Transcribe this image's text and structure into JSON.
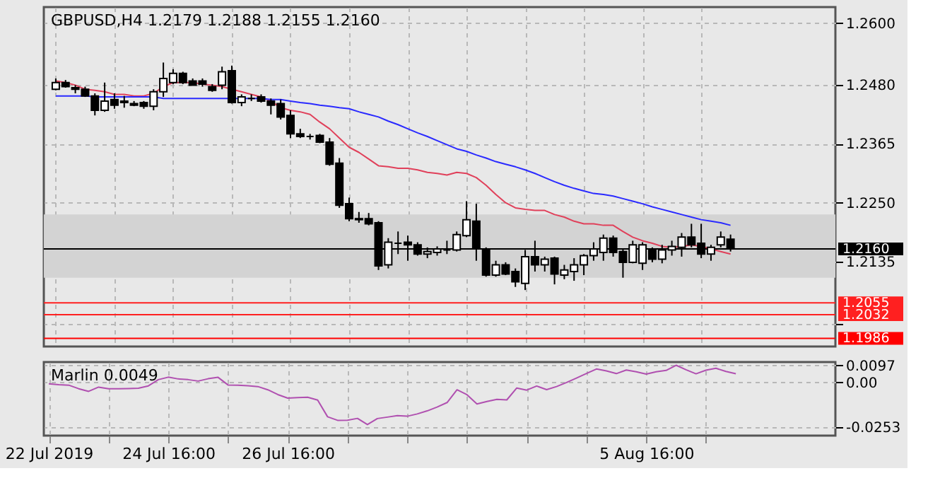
{
  "chart_data": [
    {
      "type": "candlestick",
      "title": "GBPUSD,H4  1.2179 1.2188 1.2155 1.2160",
      "categories": [
        null,
        null,
        null,
        null,
        null,
        null,
        null,
        null,
        null,
        null,
        null,
        null,
        null,
        null,
        null,
        null,
        null,
        null,
        null,
        null,
        null,
        null,
        null,
        null,
        null,
        null,
        null,
        null,
        null,
        null,
        null,
        null,
        null,
        null,
        null,
        null,
        null,
        null,
        null,
        null,
        null,
        null,
        null,
        null,
        null,
        null,
        null,
        null,
        null,
        null,
        null,
        null,
        null,
        null,
        null,
        null,
        null,
        null,
        null,
        null,
        null,
        null,
        null,
        null,
        null,
        null,
        null,
        null,
        null,
        null
      ],
      "ohlc": [
        [
          1.2471,
          1.2492,
          1.2469,
          1.2484
        ],
        [
          1.2484,
          1.2489,
          1.2474,
          1.2476
        ],
        [
          1.2474,
          1.2479,
          1.2463,
          1.2471
        ],
        [
          1.2471,
          1.2476,
          1.2456,
          1.2458
        ],
        [
          1.2458,
          1.2463,
          1.242,
          1.243
        ],
        [
          1.243,
          1.2484,
          1.2427,
          1.2448
        ],
        [
          1.2451,
          1.2463,
          1.2433,
          1.244
        ],
        [
          1.2448,
          1.2458,
          1.2435,
          1.2445
        ],
        [
          1.2443,
          1.2448,
          1.2438,
          1.244
        ],
        [
          1.2445,
          1.2448,
          1.2433,
          1.2438
        ],
        [
          1.2438,
          1.2471,
          1.243,
          1.2466
        ],
        [
          1.2466,
          1.2523,
          1.2456,
          1.2492
        ],
        [
          1.2484,
          1.251,
          1.2481,
          1.2502
        ],
        [
          1.2502,
          1.2505,
          1.2481,
          1.2484
        ],
        [
          1.2487,
          1.2492,
          1.2479,
          1.2479
        ],
        [
          1.2487,
          1.2492,
          1.2476,
          1.2481
        ],
        [
          1.2476,
          1.2481,
          1.2466,
          1.2469
        ],
        [
          1.2479,
          1.2515,
          1.2471,
          1.2505
        ],
        [
          1.2507,
          1.2517,
          1.2443,
          1.2445
        ],
        [
          1.2445,
          1.2461,
          1.2438,
          1.2456
        ],
        [
          1.2453,
          1.2461,
          1.2448,
          1.2453
        ],
        [
          1.2456,
          1.2461,
          1.2445,
          1.2448
        ],
        [
          1.2448,
          1.2453,
          1.2422,
          1.244
        ],
        [
          1.2443,
          1.2451,
          1.2412,
          1.2417
        ],
        [
          1.242,
          1.243,
          1.2376,
          1.2384
        ],
        [
          1.2384,
          1.2394,
          1.2376,
          1.2379
        ],
        [
          1.2379,
          1.2384,
          1.2373,
          1.2379
        ],
        [
          1.2381,
          1.2384,
          1.2366,
          1.2368
        ],
        [
          1.2368,
          1.2376,
          1.2322,
          1.2325
        ],
        [
          1.2327,
          1.2337,
          1.224,
          1.2245
        ],
        [
          1.2248,
          1.226,
          1.2214,
          1.2219
        ],
        [
          1.2219,
          1.2232,
          1.2211,
          1.2217
        ],
        [
          1.2219,
          1.223,
          1.2206,
          1.2209
        ],
        [
          1.2211,
          1.2214,
          1.2119,
          1.2127
        ],
        [
          1.2129,
          1.2181,
          1.2122,
          1.2173
        ],
        [
          1.2171,
          1.2194,
          1.215,
          1.2171
        ],
        [
          1.2173,
          1.2186,
          1.2137,
          1.2168
        ],
        [
          1.2168,
          1.2173,
          1.2147,
          1.215
        ],
        [
          1.215,
          1.2163,
          1.2142,
          1.2155
        ],
        [
          1.2153,
          1.2165,
          1.2147,
          1.216
        ],
        [
          1.2158,
          1.2176,
          1.215,
          1.2158
        ],
        [
          1.2158,
          1.2194,
          1.2155,
          1.2188
        ],
        [
          1.2186,
          1.2253,
          1.2183,
          1.2217
        ],
        [
          1.2214,
          1.2248,
          1.2137,
          1.216
        ],
        [
          1.2158,
          1.2163,
          1.2106,
          1.2109
        ],
        [
          1.2109,
          1.2137,
          1.2106,
          1.2129
        ],
        [
          1.2129,
          1.2134,
          1.2109,
          1.2111
        ],
        [
          1.2116,
          1.2122,
          1.2086,
          1.2096
        ],
        [
          1.2093,
          1.2158,
          1.208,
          1.2145
        ],
        [
          1.2145,
          1.2176,
          1.2116,
          1.2129
        ],
        [
          1.2129,
          1.2145,
          1.2116,
          1.214
        ],
        [
          1.2142,
          1.2145,
          1.2091,
          1.2111
        ],
        [
          1.2109,
          1.2129,
          1.2101,
          1.2119
        ],
        [
          1.2116,
          1.2142,
          1.2098,
          1.2129
        ],
        [
          1.2129,
          1.215,
          1.2109,
          1.2147
        ],
        [
          1.2147,
          1.2173,
          1.2137,
          1.216
        ],
        [
          1.2153,
          1.2188,
          1.2137,
          1.2181
        ],
        [
          1.2181,
          1.2186,
          1.2145,
          1.2153
        ],
        [
          1.2155,
          1.216,
          1.2104,
          1.2134
        ],
        [
          1.2134,
          1.2176,
          1.2132,
          1.2168
        ],
        [
          1.2132,
          1.2173,
          1.2119,
          1.2168
        ],
        [
          1.2158,
          1.2163,
          1.2134,
          1.214
        ],
        [
          1.214,
          1.2168,
          1.2132,
          1.2158
        ],
        [
          1.2158,
          1.2176,
          1.2147,
          1.2165
        ],
        [
          1.2163,
          1.2191,
          1.2145,
          1.2183
        ],
        [
          1.2183,
          1.2209,
          1.2163,
          1.2168
        ],
        [
          1.2171,
          1.2209,
          1.2142,
          1.215
        ],
        [
          1.215,
          1.2168,
          1.2137,
          1.2163
        ],
        [
          1.2168,
          1.2194,
          1.2163,
          1.2183
        ],
        [
          1.2179,
          1.2188,
          1.2155,
          1.216
        ]
      ],
      "series": [
        {
          "type": "line",
          "color": "#e0405a",
          "values": [
            1.2487,
            1.2484,
            1.2479,
            1.2471,
            1.2469,
            1.2466,
            1.2461,
            1.2461,
            1.2458,
            1.2458,
            1.2463,
            1.2476,
            1.2484,
            1.2484,
            1.2484,
            1.2481,
            1.2479,
            1.2476,
            1.2471,
            1.2466,
            1.2461,
            1.2456,
            1.2448,
            1.2435,
            1.243,
            1.2427,
            1.2422,
            1.2407,
            1.2394,
            1.2376,
            1.2358,
            1.2348,
            1.2335,
            1.2322,
            1.232,
            1.2317,
            1.2317,
            1.2314,
            1.2309,
            1.2307,
            1.2304,
            1.2309,
            1.2307,
            1.2299,
            1.2284,
            1.2266,
            1.225,
            1.224,
            1.2237,
            1.2235,
            1.2235,
            1.2227,
            1.2222,
            1.2214,
            1.2209,
            1.2209,
            1.2206,
            1.2206,
            1.2194,
            1.2183,
            1.2176,
            1.2171,
            1.2165,
            1.2163,
            1.2165,
            1.2168,
            1.2165,
            1.216,
            1.2155,
            1.215
          ]
        },
        {
          "type": "line",
          "color": "#2a2aff",
          "values": [
            1.2458,
            1.2458,
            1.2458,
            1.2458,
            1.2456,
            1.2456,
            1.2456,
            1.2456,
            1.2456,
            1.2456,
            1.2456,
            1.2453,
            1.2453,
            1.2453,
            1.2453,
            1.2453,
            1.2453,
            1.2453,
            1.2453,
            1.2453,
            1.2453,
            1.2453,
            1.2451,
            1.2451,
            1.2448,
            1.2445,
            1.2443,
            1.244,
            1.2438,
            1.2435,
            1.2433,
            1.2427,
            1.2422,
            1.2417,
            1.2409,
            1.2402,
            1.2394,
            1.2386,
            1.2379,
            1.2371,
            1.2363,
            1.2355,
            1.235,
            1.2343,
            1.2337,
            1.233,
            1.2325,
            1.232,
            1.2314,
            1.2307,
            1.2299,
            1.2291,
            1.2284,
            1.2278,
            1.2273,
            1.2268,
            1.2266,
            1.2263,
            1.2258,
            1.2253,
            1.2248,
            1.2242,
            1.2237,
            1.2232,
            1.2227,
            1.2222,
            1.2217,
            1.2214,
            1.2211,
            1.2206
          ]
        }
      ],
      "ylim": [
        1.197,
        1.2631
      ],
      "yticks": [
        {
          "value": 1.26,
          "label": "1.2600"
        },
        {
          "value": 1.248,
          "label": "1.2480"
        },
        1.2365,
        {
          "value": 1.225,
          "label": "1.2250"
        },
        1.2135,
        {
          "value": 1.2015,
          "label": null
        }
      ],
      "grid": true,
      "tick_labels": "y",
      "bands": [
        {
          "axis": "y",
          "from": 1.2104,
          "to": 1.2227,
          "color": "#d3d3d3"
        }
      ],
      "ref_lines": [
        {
          "axis": "y",
          "value": 1.216,
          "label": "1.2160",
          "color": "#000000",
          "line_style": "solid"
        },
        {
          "axis": "y",
          "value": 1.2055,
          "label": "1.2055",
          "color": "#ff2020",
          "line_style": "solid"
        },
        {
          "axis": "y",
          "value": 1.2032,
          "label": "1.2032",
          "color": "#ff2020",
          "line_style": "solid"
        },
        {
          "axis": "y",
          "value": 1.1986,
          "label": "1.1986",
          "color": "#ff0000",
          "line_style": "solid"
        }
      ]
    },
    {
      "type": "line",
      "title": "Marlin 0.0049",
      "categories": [
        "22 Jul 2019",
        null,
        null,
        null,
        null,
        null,
        null,
        null,
        null,
        null,
        null,
        null,
        "24 Jul 16:00",
        null,
        null,
        null,
        null,
        null,
        null,
        null,
        null,
        null,
        null,
        null,
        "26 Jul 16:00",
        null,
        null,
        null,
        null,
        null,
        null,
        null,
        null,
        null,
        null,
        null,
        null,
        null,
        null,
        null,
        null,
        null,
        null,
        null,
        null,
        null,
        null,
        null,
        null,
        null,
        null,
        null,
        null,
        null,
        null,
        null,
        null,
        null,
        null,
        null,
        "5 Aug 16:00",
        null,
        null,
        null,
        null,
        null,
        null,
        null,
        null,
        null
      ],
      "series": [
        {
          "color": "#b050b0",
          "values": [
            -0.0007,
            -0.0012,
            -0.0015,
            -0.0035,
            -0.005,
            -0.0026,
            -0.0035,
            -0.0035,
            -0.0034,
            -0.0032,
            -0.0019,
            0.0016,
            0.003,
            0.002,
            0.0016,
            0.0008,
            0.0021,
            0.0029,
            -0.0014,
            -0.0015,
            -0.0018,
            -0.0023,
            -0.0041,
            -0.0068,
            -0.0088,
            -0.0085,
            -0.0083,
            -0.0099,
            -0.0193,
            -0.0213,
            -0.0212,
            -0.0202,
            -0.0237,
            -0.0203,
            -0.0195,
            -0.0187,
            -0.019,
            -0.0177,
            -0.016,
            -0.0138,
            -0.0113,
            -0.0041,
            -0.0069,
            -0.0121,
            -0.0107,
            -0.0095,
            -0.0098,
            -0.0031,
            -0.0043,
            -0.002,
            -0.004,
            -0.0023,
            0.0,
            0.0025,
            0.0051,
            0.0076,
            0.0065,
            0.005,
            0.007,
            0.006,
            0.0047,
            0.006,
            0.0068,
            0.0097,
            0.0072,
            0.0049,
            0.0069,
            0.008,
            0.0062,
            0.0049
          ]
        }
      ],
      "ylim": [
        -0.0299,
        0.0115
      ],
      "yticks": [
        0.0097,
        {
          "value": 0,
          "label": "0.00"
        },
        -0.0253
      ],
      "grid": true
    }
  ]
}
